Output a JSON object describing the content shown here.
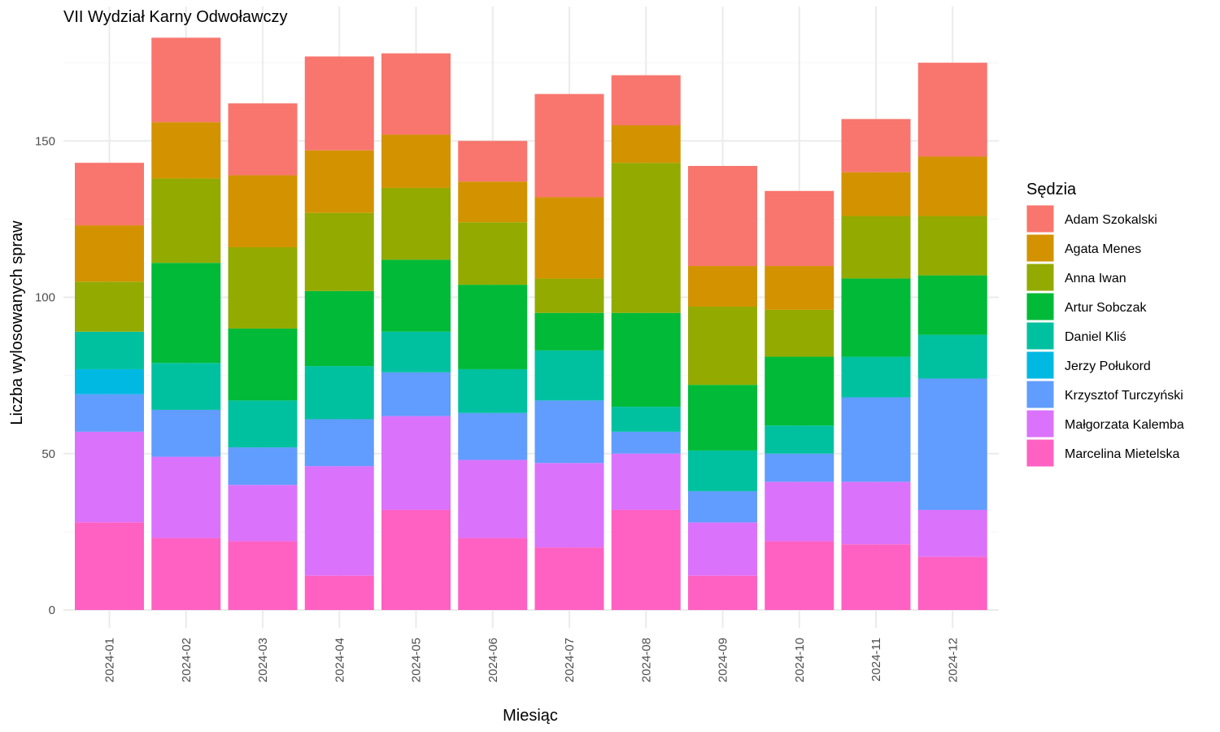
{
  "chart_data": {
    "type": "bar",
    "stacked": true,
    "title": "VII Wydział Karny Odwoławczy",
    "xlabel": "Miesiąc",
    "ylabel": "Liczba wylosowanych spraw",
    "ylim": [
      0,
      185
    ],
    "yticks": [
      0,
      50,
      100,
      150
    ],
    "grid": true,
    "legend": {
      "title": "Sędzia",
      "position": "right"
    },
    "categories": [
      "2024-01",
      "2024-02",
      "2024-03",
      "2024-04",
      "2024-05",
      "2024-06",
      "2024-07",
      "2024-08",
      "2024-09",
      "2024-10",
      "2024-11",
      "2024-12"
    ],
    "series": [
      {
        "name": "Marcelina Mietelska",
        "color": "#FF61C3",
        "values": [
          28,
          23,
          22,
          11,
          32,
          23,
          20,
          32,
          11,
          22,
          21,
          17
        ]
      },
      {
        "name": "Małgorzata Kalemba",
        "color": "#DB72FB",
        "values": [
          29,
          26,
          18,
          35,
          30,
          25,
          27,
          18,
          17,
          19,
          20,
          15
        ]
      },
      {
        "name": "Krzysztof Turczyński",
        "color": "#619CFF",
        "values": [
          12,
          15,
          12,
          15,
          14,
          15,
          20,
          7,
          10,
          9,
          27,
          42
        ]
      },
      {
        "name": "Jerzy Połukord",
        "color": "#00B9E3",
        "values": [
          8,
          0,
          0,
          0,
          0,
          0,
          0,
          0,
          0,
          0,
          0,
          0
        ]
      },
      {
        "name": "Daniel Kliś",
        "color": "#00C19F",
        "values": [
          12,
          15,
          15,
          17,
          13,
          14,
          16,
          8,
          13,
          9,
          13,
          14
        ]
      },
      {
        "name": "Artur Sobczak",
        "color": "#00BA38",
        "values": [
          0,
          32,
          23,
          24,
          23,
          27,
          12,
          30,
          21,
          22,
          25,
          19
        ]
      },
      {
        "name": "Anna Iwan",
        "color": "#93AA00",
        "values": [
          16,
          27,
          26,
          25,
          23,
          20,
          11,
          48,
          25,
          15,
          20,
          19
        ]
      },
      {
        "name": "Agata Menes",
        "color": "#D39200",
        "values": [
          18,
          18,
          23,
          20,
          17,
          13,
          26,
          12,
          13,
          14,
          14,
          19
        ]
      },
      {
        "name": "Adam Szokalski",
        "color": "#F8766D",
        "values": [
          20,
          27,
          23,
          30,
          26,
          13,
          33,
          16,
          32,
          24,
          17,
          30
        ]
      }
    ],
    "legend_order": [
      "Adam Szokalski",
      "Agata Menes",
      "Anna Iwan",
      "Artur Sobczak",
      "Daniel Kliś",
      "Jerzy Połukord",
      "Krzysztof Turczyński",
      "Małgorzata Kalemba",
      "Marcelina Mietelska"
    ]
  }
}
